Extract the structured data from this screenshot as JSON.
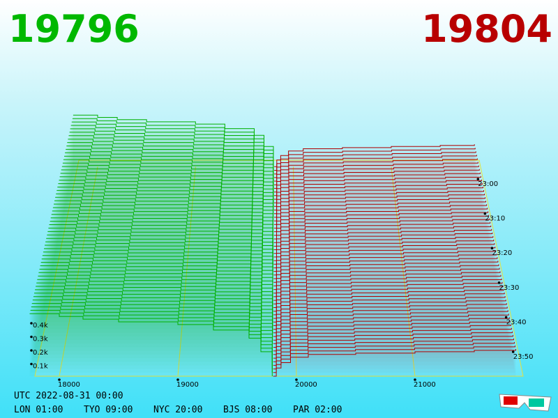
{
  "header": {
    "bid_price": 19796,
    "ask_price": 19804
  },
  "chart_data": {
    "type": "depth3d",
    "bids": {
      "color": "#00b000",
      "prices": [
        17750,
        18000,
        18200,
        18500,
        19000,
        19300,
        19600,
        19700,
        19796
      ],
      "depths": [
        460,
        440,
        420,
        400,
        380,
        340,
        280,
        180,
        0
      ]
    },
    "asks": {
      "color": "#b00000",
      "prices": [
        19804,
        19830,
        19870,
        19950,
        20100,
        20500,
        21000,
        21500,
        21850
      ],
      "depths": [
        0,
        60,
        100,
        140,
        160,
        170,
        180,
        190,
        200
      ]
    },
    "xlim": [
      17794,
      21912
    ],
    "xticks": [
      18000,
      19000,
      20000,
      21000
    ],
    "ylim": [
      0,
      500
    ],
    "yticks": [
      {
        "value": 100,
        "label": "0.1k"
      },
      {
        "value": 200,
        "label": "0.2k"
      },
      {
        "value": 300,
        "label": "0.3k"
      },
      {
        "value": 400,
        "label": "0.4k"
      }
    ],
    "time_ticks": [
      "23:00",
      "23:10",
      "23:20",
      "23:30",
      "23:40",
      "23:50"
    ]
  },
  "footer": {
    "utc": "UTC 2022-08-31 00:00",
    "clocks": [
      "LON 01:00",
      "TYO 09:00",
      "NYC 20:00",
      "BJS 08:00",
      "PAR 02:00"
    ]
  }
}
